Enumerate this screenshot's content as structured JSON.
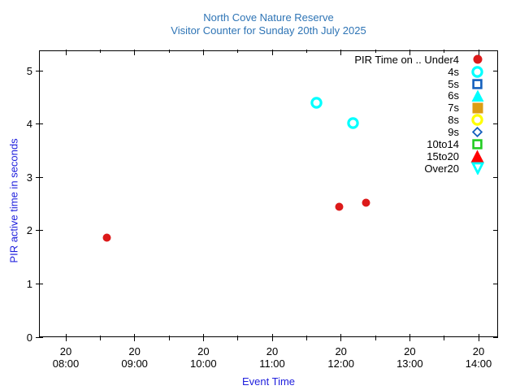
{
  "title": {
    "line1": "North Cove Nature Reserve",
    "line2": "Visitor Counter for Sunday 20th July 2025"
  },
  "colors": {
    "title_text": "#2e74b5",
    "axis_label_text": "#2020dd",
    "tick_text": "#000000",
    "plot_border": "#000000",
    "background": "#ffffff"
  },
  "chart_data": {
    "type": "scatter",
    "title": "North Cove Nature Reserve",
    "subtitle": "Visitor Counter for Sunday 20th July 2025",
    "xlabel": "Event Time",
    "ylabel": "PIR active time in seconds",
    "grid": false,
    "legend_position": "top-right-inside",
    "x_axis": {
      "kind": "time-of-day",
      "day_label": "20",
      "ticks": [
        {
          "day": "20",
          "time": "08:00",
          "hour": 8
        },
        {
          "day": "20",
          "time": "09:00",
          "hour": 9
        },
        {
          "day": "20",
          "time": "10:00",
          "hour": 10
        },
        {
          "day": "20",
          "time": "11:00",
          "hour": 11
        },
        {
          "day": "20",
          "time": "12:00",
          "hour": 12
        },
        {
          "day": "20",
          "time": "13:00",
          "hour": 13
        },
        {
          "day": "20",
          "time": "14:00",
          "hour": 14
        }
      ],
      "minor_tick_hours": [
        8.5,
        9.5,
        10.5,
        11.5,
        12.5,
        13.5
      ],
      "xlim_hours": [
        7.62,
        14.28
      ]
    },
    "y_axis": {
      "ticks": [
        0,
        1,
        2,
        3,
        4,
        5
      ],
      "ylim": [
        0,
        5.38
      ]
    },
    "legend": [
      {
        "label": "PIR Time on .. Under4",
        "shape": "circle",
        "color": "#dc1a1a",
        "open": false,
        "size": 12
      },
      {
        "label": "4s",
        "shape": "circle",
        "color": "#00ffff",
        "open": true,
        "size": 15
      },
      {
        "label": "5s",
        "shape": "square",
        "color": "#1560bd",
        "open": true,
        "size": 13
      },
      {
        "label": "6s",
        "shape": "triangle-up",
        "color": "#00ffff",
        "open": false,
        "size": 16
      },
      {
        "label": "7s",
        "shape": "square",
        "color": "#dd9e14",
        "open": false,
        "size": 14
      },
      {
        "label": "8s",
        "shape": "circle",
        "color": "#ffff00",
        "open": true,
        "size": 15
      },
      {
        "label": "9s",
        "shape": "diamond",
        "color": "#1560bd",
        "open": true,
        "size": 13
      },
      {
        "label": "10to14",
        "shape": "square",
        "color": "#22cc22",
        "open": true,
        "size": 13
      },
      {
        "label": "15to20",
        "shape": "triangle-up",
        "color": "#ff0000",
        "open": false,
        "size": 17
      },
      {
        "label": "Over20",
        "shape": "triangle-down",
        "color": "#00ffff",
        "open": true,
        "size": 16
      }
    ],
    "series": [
      {
        "name": "Under4",
        "legend_label": "PIR Time on .. Under4",
        "marker": {
          "shape": "circle",
          "color": "#dc1a1a",
          "open": false,
          "size": 11
        },
        "points": [
          {
            "time": "08:36",
            "hour": 8.6,
            "seconds": 1.86
          },
          {
            "time": "11:58",
            "hour": 11.97,
            "seconds": 2.45
          },
          {
            "time": "12:22",
            "hour": 12.36,
            "seconds": 2.52
          }
        ]
      },
      {
        "name": "4s",
        "legend_label": "4s",
        "marker": {
          "shape": "circle",
          "color": "#00ffff",
          "open": true,
          "size": 15
        },
        "points": [
          {
            "time": "11:38",
            "hour": 11.64,
            "seconds": 4.4
          },
          {
            "time": "12:10",
            "hour": 12.17,
            "seconds": 4.02
          }
        ]
      }
    ]
  }
}
